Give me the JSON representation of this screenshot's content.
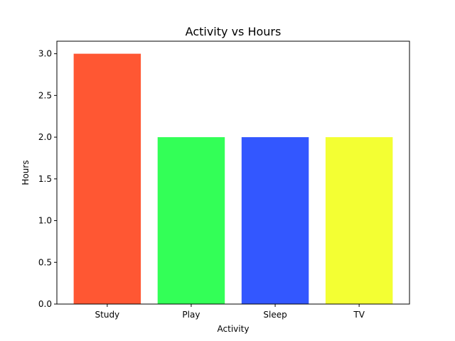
{
  "chart_data": {
    "type": "bar",
    "title": "Activity vs Hours",
    "xlabel": "Activity",
    "ylabel": "Hours",
    "categories": [
      "Study",
      "Play",
      "Sleep",
      "TV"
    ],
    "values": [
      3.0,
      2.0,
      2.0,
      2.0
    ],
    "colors": [
      "#ff5733",
      "#33ff57",
      "#3357ff",
      "#f3ff33"
    ],
    "ylim": [
      0,
      3.15
    ],
    "yticks": [
      0.0,
      0.5,
      1.0,
      1.5,
      2.0,
      2.5,
      3.0
    ],
    "ytick_labels": [
      "0.0",
      "0.5",
      "1.0",
      "1.5",
      "2.0",
      "2.5",
      "3.0"
    ],
    "grid": false,
    "legend": "none"
  }
}
